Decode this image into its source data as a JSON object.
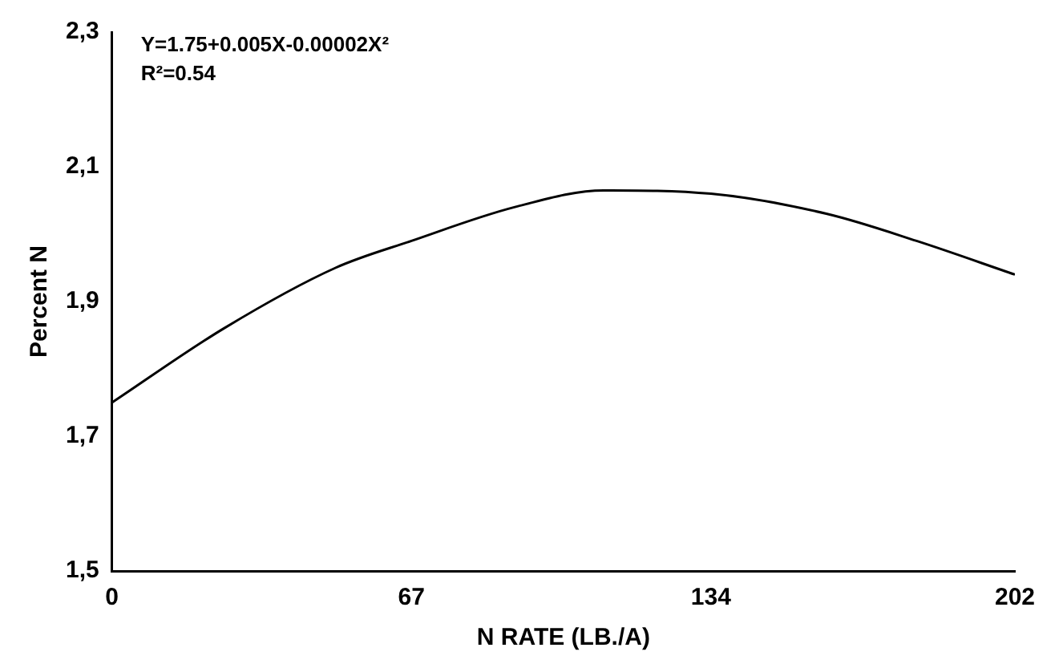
{
  "chart_data": {
    "type": "line",
    "xlabel": "N RATE (LB./A)",
    "ylabel": "Percent N",
    "annotations": [
      "Y=1.75+0.005X-0.00002X²",
      "R²=0.54"
    ],
    "series": [
      {
        "color": "#000000",
        "x": [
          0,
          25,
          50,
          67,
          90,
          110,
          134,
          160,
          180,
          202
        ],
        "values": [
          1.75,
          1.86,
          1.95,
          1.99,
          2.04,
          2.065,
          2.06,
          2.03,
          1.99,
          1.94
        ]
      }
    ],
    "xlim": [
      0,
      202
    ],
    "xticks": [
      0,
      67,
      134,
      202
    ],
    "ylim": [
      1.5,
      2.3
    ],
    "yticks": [
      {
        "value": 1.5,
        "label": "1,5"
      },
      {
        "value": 1.7,
        "label": "1,7"
      },
      {
        "value": 1.9,
        "label": "1,9"
      },
      {
        "value": 2.1,
        "label": "2,1"
      },
      {
        "value": 2.3,
        "label": "2,3"
      }
    ],
    "grid": false,
    "legend": false,
    "marker": "none",
    "line_style": "solid"
  }
}
